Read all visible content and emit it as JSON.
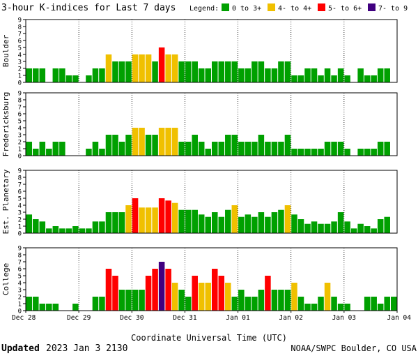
{
  "header": {
    "title": "3-hour K-indices for Last 7 days",
    "legend_label": "Legend:",
    "legend": [
      {
        "label": "0 to 3+",
        "color": "#00a000"
      },
      {
        "label": "4- to 4+",
        "color": "#f0c000"
      },
      {
        "label": "5- to 6+",
        "color": "#ff0000"
      },
      {
        "label": "7- to 9",
        "color": "#400080"
      }
    ]
  },
  "footer": {
    "updated_label": "Updated",
    "updated_time": "2023 Jan  3 2130",
    "credit": "NOAA/SWPC Boulder, CO USA"
  },
  "chart_data": {
    "type": "bar",
    "xlabel": "Coordinate Universal Time (UTC)",
    "ylim": [
      0,
      9
    ],
    "yticks": [
      "0",
      "1",
      "2",
      "3",
      "4",
      "5",
      "6",
      "7",
      "8",
      "9"
    ],
    "xticks": [
      "Dec 28",
      "Dec 29",
      "Dec 30",
      "Dec 31",
      "Jan 01",
      "Jan 02",
      "Jan 03",
      "Jan 04"
    ],
    "bins_per_day": 8,
    "grid": true,
    "color_scale": {
      "green": "#00a000",
      "yellow": "#f0c000",
      "red": "#ff0000",
      "purple": "#400080"
    },
    "panels": [
      {
        "name": "Boulder",
        "values": [
          2,
          2,
          2,
          0,
          2,
          2,
          1,
          1,
          0,
          1,
          2,
          2,
          4,
          3,
          3,
          3,
          4,
          4,
          4,
          3,
          5,
          4,
          4,
          3,
          3,
          3,
          2,
          2,
          3,
          3,
          3,
          3,
          2,
          2,
          3,
          3,
          2,
          2,
          3,
          3,
          1,
          1,
          2,
          2,
          1,
          2,
          1,
          2,
          1,
          0,
          2,
          1,
          1,
          2,
          2,
          0
        ]
      },
      {
        "name": "Fredericksburg",
        "values": [
          2,
          1,
          2,
          1,
          2,
          2,
          0,
          0,
          0,
          1,
          2,
          1,
          3,
          3,
          2,
          3,
          4,
          4,
          3,
          3,
          4,
          4,
          4,
          2,
          2,
          3,
          2,
          1,
          2,
          2,
          3,
          3,
          2,
          2,
          2,
          3,
          2,
          2,
          2,
          3,
          1,
          1,
          1,
          1,
          1,
          2,
          2,
          2,
          1,
          0,
          1,
          1,
          1,
          2,
          2,
          0
        ]
      },
      {
        "name": "Est. Planetary",
        "values": [
          2.67,
          2,
          1.67,
          0.67,
          1,
          0.67,
          0.67,
          1,
          0.67,
          0.67,
          1.67,
          1.67,
          3,
          3,
          3,
          4,
          5,
          3.67,
          3.67,
          3.67,
          5,
          4.67,
          4.33,
          3.33,
          3.33,
          3.33,
          2.67,
          2.33,
          3,
          2.33,
          3.33,
          4,
          2.33,
          2.67,
          2.33,
          3,
          2.33,
          3,
          3.33,
          4,
          2.67,
          2,
          1.33,
          1.67,
          1.33,
          1.33,
          1.67,
          3,
          1.67,
          0.67,
          1.33,
          1,
          0.67,
          2,
          2.33,
          0
        ]
      },
      {
        "name": "College",
        "values": [
          2,
          2,
          1,
          1,
          1,
          0,
          0,
          1,
          0,
          0,
          2,
          2,
          6,
          5,
          3,
          3,
          3,
          3,
          5,
          6,
          7,
          6,
          4,
          3,
          2,
          5,
          4,
          4,
          6,
          5,
          4,
          2,
          3,
          2,
          2,
          3,
          5,
          3,
          3,
          3,
          4,
          2,
          1,
          1,
          2,
          4,
          2,
          1,
          1,
          0,
          0,
          2,
          2,
          1,
          2,
          2
        ]
      }
    ]
  }
}
